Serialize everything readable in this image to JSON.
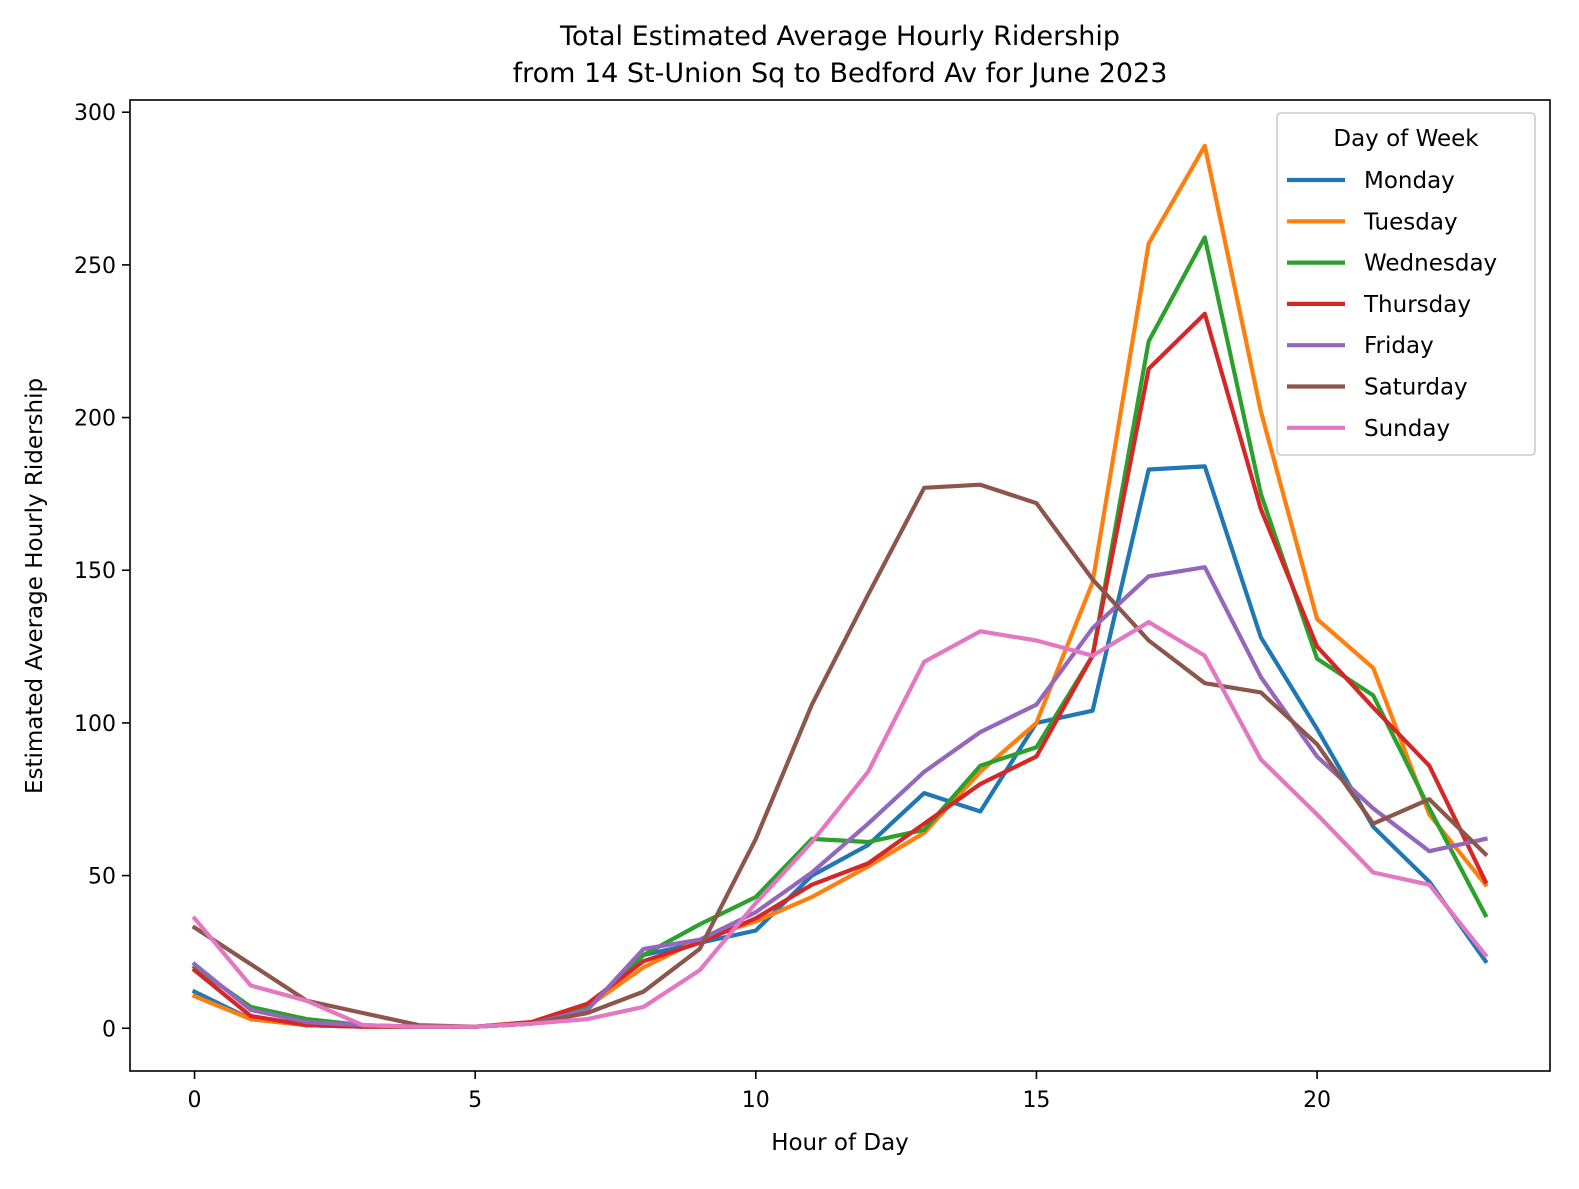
{
  "chart_data": {
    "type": "line",
    "title": [
      "Total Estimated Average Hourly Ridership",
      "from 14 St-Union Sq to Bedford Av for June 2023"
    ],
    "xlabel": "Hour of Day",
    "ylabel": "Estimated Average Hourly Ridership",
    "xlim": [
      -1.15,
      24.15
    ],
    "ylim": [
      -14,
      304
    ],
    "xticks": [
      0,
      5,
      10,
      15,
      20
    ],
    "yticks": [
      0,
      50,
      100,
      150,
      200,
      250,
      300
    ],
    "grid": false,
    "legend": {
      "title": "Day of Week",
      "placement": "top-right"
    },
    "x": [
      0,
      1,
      2,
      3,
      4,
      5,
      6,
      7,
      8,
      9,
      10,
      11,
      12,
      13,
      14,
      15,
      16,
      17,
      18,
      19,
      20,
      21,
      22,
      23
    ],
    "series": [
      {
        "name": "Monday",
        "color": "#1f77b4",
        "values": [
          12,
          3,
          1,
          0.5,
          0.5,
          0.5,
          1.5,
          7,
          24,
          28,
          32,
          50,
          60,
          77,
          71,
          100,
          104,
          183,
          184,
          128,
          98,
          66,
          48,
          22
        ]
      },
      {
        "name": "Tuesday",
        "color": "#ff7f0e",
        "values": [
          10.5,
          3,
          1,
          0.5,
          0.5,
          0.5,
          2,
          7,
          20,
          29,
          35,
          43,
          53,
          64,
          84,
          100,
          146,
          257,
          289,
          202,
          134,
          118,
          70,
          47
        ]
      },
      {
        "name": "Wednesday",
        "color": "#2ca02c",
        "values": [
          20,
          7,
          3,
          1,
          0.5,
          0.5,
          1.5,
          7,
          24,
          34,
          43,
          62,
          61,
          65,
          86,
          92,
          122,
          225,
          259,
          175,
          121,
          109,
          72,
          37
        ]
      },
      {
        "name": "Thursday",
        "color": "#d62728",
        "values": [
          19,
          4,
          1,
          0.5,
          0.5,
          0.5,
          2,
          8,
          22,
          28,
          36,
          47,
          54,
          67,
          80,
          89,
          122,
          216,
          234,
          170,
          125,
          105,
          86,
          48
        ]
      },
      {
        "name": "Friday",
        "color": "#9467bd",
        "values": [
          21,
          6,
          2,
          1,
          0.5,
          0.5,
          1.5,
          6,
          26,
          29,
          38,
          51,
          67,
          84,
          97,
          106,
          131,
          148,
          151,
          115,
          89,
          72,
          58,
          62
        ]
      },
      {
        "name": "Saturday",
        "color": "#8c564b",
        "values": [
          33,
          21,
          9,
          5,
          1,
          0.5,
          1.5,
          5,
          12,
          26,
          62,
          106,
          142,
          177,
          178,
          172,
          147,
          127,
          113,
          110,
          93,
          67,
          75,
          57
        ]
      },
      {
        "name": "Sunday",
        "color": "#e377c2",
        "values": [
          36,
          14,
          9,
          1,
          0.5,
          0.5,
          1.5,
          3,
          7,
          19,
          41,
          61,
          84,
          120,
          130,
          127,
          122,
          133,
          122,
          88,
          70,
          51,
          47,
          24
        ]
      }
    ]
  }
}
